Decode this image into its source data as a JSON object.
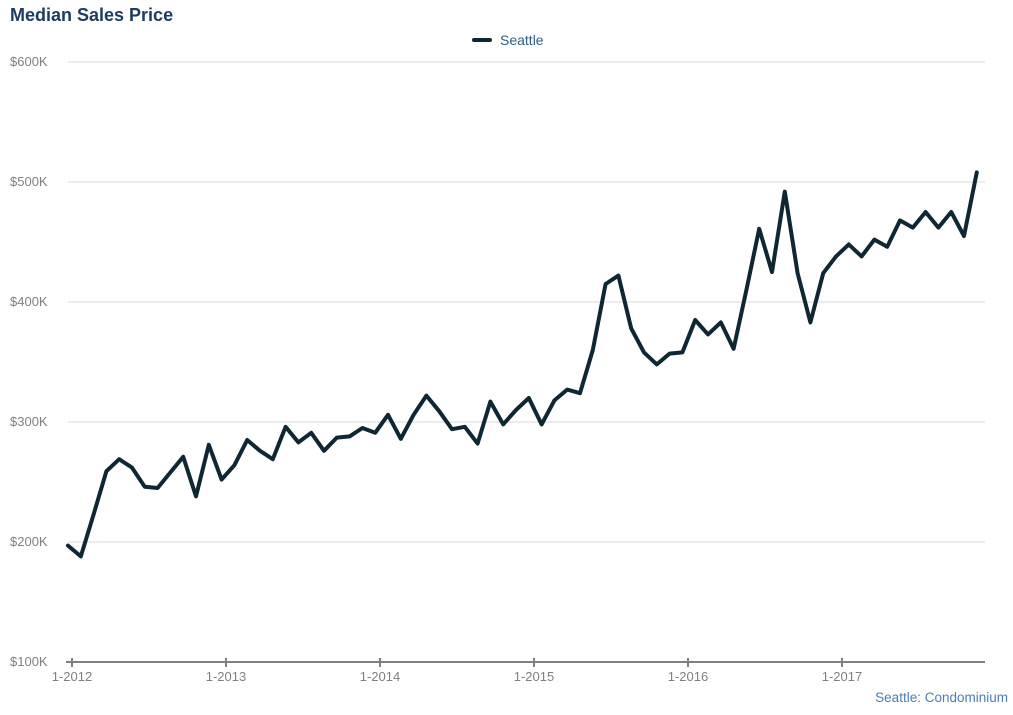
{
  "title": "Median Sales Price",
  "legend": {
    "label": "Seattle",
    "swatch_color": "#0f2733"
  },
  "footer": {
    "text": "Seattle: Condominium"
  },
  "colors": {
    "title": "#1c3c60",
    "series_line": "#0f2733",
    "gridline": "#d9d9d9",
    "axis_line": "#808080",
    "tick_label": "#808080",
    "legend_text": "#2c5d87",
    "footnote_text": "#4d7eb3"
  },
  "y_axis": {
    "tick_labels": [
      "$600K",
      "$500K",
      "$400K",
      "$300K",
      "$200K",
      "$100K"
    ],
    "tick_values": [
      600,
      500,
      400,
      300,
      200,
      100
    ]
  },
  "x_axis": {
    "tick_labels": [
      "1-2012",
      "1-2013",
      "1-2014",
      "1-2015",
      "1-2016",
      "1-2017"
    ]
  },
  "chart_data": {
    "type": "line",
    "title": "Median Sales Price",
    "footnote": "Seattle: Condominium",
    "ylabel": "",
    "xlabel": "",
    "y_units": "USD thousands",
    "ylim_thousands": [
      100,
      600
    ],
    "y_tick_format": "$NNNK",
    "grid": "horizontal-only",
    "legend_position": "top-center",
    "x": [
      "1-2012",
      "2-2012",
      "3-2012",
      "4-2012",
      "5-2012",
      "6-2012",
      "7-2012",
      "8-2012",
      "9-2012",
      "10-2012",
      "11-2012",
      "12-2012",
      "1-2013",
      "2-2013",
      "3-2013",
      "4-2013",
      "5-2013",
      "6-2013",
      "7-2013",
      "8-2013",
      "9-2013",
      "10-2013",
      "11-2013",
      "12-2013",
      "1-2014",
      "2-2014",
      "3-2014",
      "4-2014",
      "5-2014",
      "6-2014",
      "7-2014",
      "8-2014",
      "9-2014",
      "10-2014",
      "11-2014",
      "12-2014",
      "1-2015",
      "2-2015",
      "3-2015",
      "4-2015",
      "5-2015",
      "6-2015",
      "7-2015",
      "8-2015",
      "9-2015",
      "10-2015",
      "11-2015",
      "12-2015",
      "1-2016",
      "2-2016",
      "3-2016",
      "4-2016",
      "5-2016",
      "6-2016",
      "7-2016",
      "8-2016",
      "9-2016",
      "10-2016",
      "11-2016",
      "12-2016",
      "1-2017",
      "2-2017",
      "3-2017",
      "4-2017",
      "5-2017",
      "6-2017",
      "7-2017",
      "8-2017",
      "9-2017",
      "10-2017",
      "11-2017",
      "12-2017"
    ],
    "series": [
      {
        "name": "Seattle",
        "color": "#0f2733",
        "values_thousands": [
          197,
          188,
          223,
          259,
          269,
          262,
          246,
          245,
          258,
          271,
          238,
          281,
          252,
          264,
          285,
          276,
          269,
          296,
          283,
          291,
          276,
          287,
          288,
          295,
          291,
          306,
          286,
          306,
          322,
          309,
          294,
          296,
          282,
          317,
          298,
          310,
          320,
          298,
          318,
          327,
          324,
          360,
          415,
          422,
          378,
          358,
          348,
          357,
          358,
          385,
          373,
          383,
          361,
          410,
          461,
          425,
          492,
          424,
          383,
          424,
          438,
          448,
          438,
          452,
          446,
          468,
          462,
          475,
          462,
          475,
          455,
          508
        ]
      }
    ]
  }
}
